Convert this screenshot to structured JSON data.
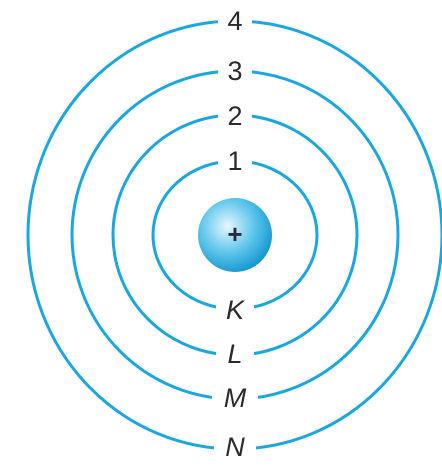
{
  "colors": {
    "shell": "#1aa7e0",
    "nucleus_light": "#e6f7fd",
    "nucleus_mid": "#5fc6ec",
    "nucleus_dark": "#1497cf",
    "label": "#2b2b2b"
  },
  "nucleus": {
    "sign": "+"
  },
  "shells": [
    {
      "number": "1",
      "letter": "K"
    },
    {
      "number": "2",
      "letter": "L"
    },
    {
      "number": "3",
      "letter": "M"
    },
    {
      "number": "4",
      "letter": "N"
    }
  ]
}
